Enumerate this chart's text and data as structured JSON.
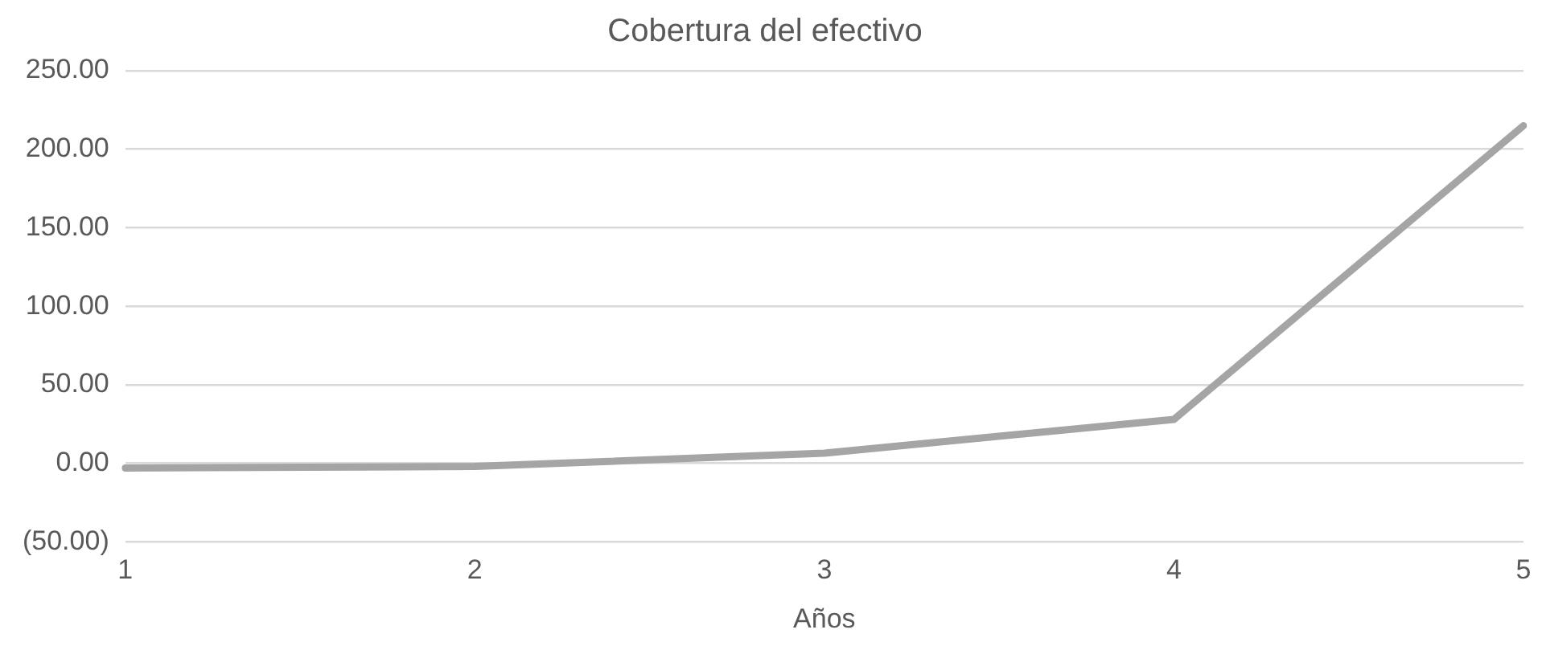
{
  "chart_data": {
    "type": "line",
    "title": "Cobertura del efectivo",
    "xlabel": "Años",
    "categories": [
      "1",
      "2",
      "3",
      "4",
      "5"
    ],
    "series": [
      {
        "color": "#a5a5a5",
        "values": [
          -3,
          -2,
          6.5,
          28,
          215
        ]
      }
    ],
    "ylim": [
      -50,
      250
    ],
    "yticks": [
      {
        "value": -50,
        "label": "(50.00)"
      },
      {
        "value": 0,
        "label": "0.00"
      },
      {
        "value": 50,
        "label": "50.00"
      },
      {
        "value": 100,
        "label": "100.00"
      },
      {
        "value": 150,
        "label": "150.00"
      },
      {
        "value": 200,
        "label": "200.00"
      },
      {
        "value": 250,
        "label": "250.00"
      }
    ],
    "grid": "y",
    "legend": false,
    "marker": "none",
    "line_style": "solid"
  }
}
